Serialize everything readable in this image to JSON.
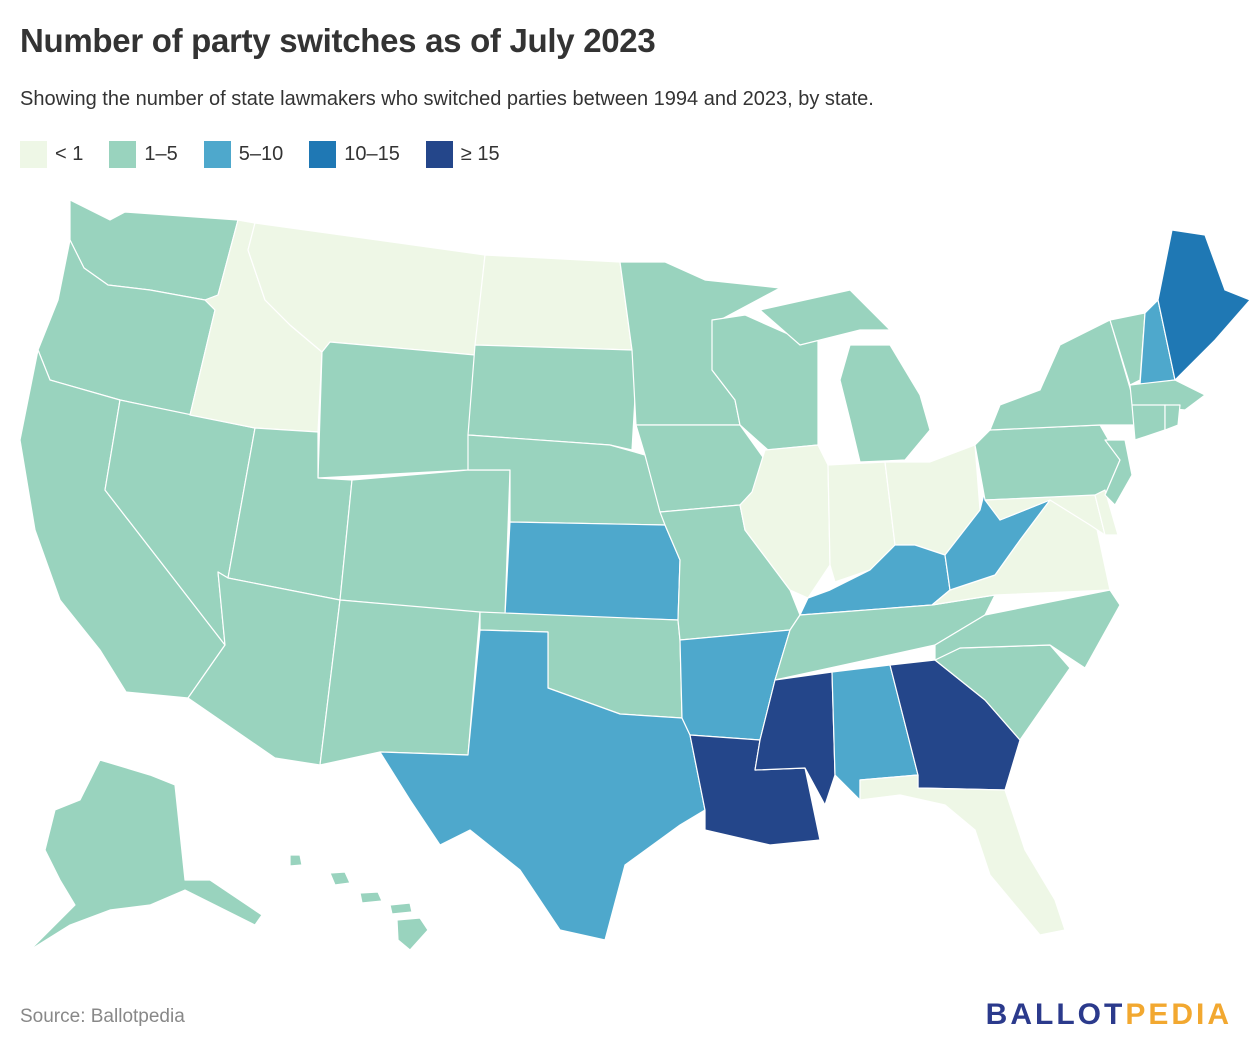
{
  "title": "Number of party switches as of July 2023",
  "subtitle": "Showing the number of state lawmakers who switched parties between 1994 and 2023, by state.",
  "legend": [
    {
      "label": "< 1",
      "color": "#eef7e6"
    },
    {
      "label": "1–5",
      "color": "#99d3be"
    },
    {
      "label": "5–10",
      "color": "#4ea8cc"
    },
    {
      "label": "10–15",
      "color": "#1f78b4"
    },
    {
      "label": "≥ 15",
      "color": "#24468a"
    }
  ],
  "states": {
    "WA": "1–5",
    "OR": "1–5",
    "CA": "1–5",
    "NV": "1–5",
    "ID": "< 1",
    "MT": "< 1",
    "WY": "1–5",
    "UT": "1–5",
    "AZ": "1–5",
    "CO": "1–5",
    "NM": "1–5",
    "ND": "< 1",
    "SD": "1–5",
    "NE": "1–5",
    "KS": "5–10",
    "OK": "1–5",
    "TX": "5–10",
    "MN": "1–5",
    "IA": "1–5",
    "MO": "1–5",
    "AR": "5–10",
    "LA": "≥ 15",
    "WI": "1–5",
    "IL": "< 1",
    "MI": "1–5",
    "IN": "< 1",
    "OH": "< 1",
    "KY": "5–10",
    "TN": "1–5",
    "MS": "≥ 15",
    "AL": "5–10",
    "GA": "≥ 15",
    "FL": "< 1",
    "SC": "1–5",
    "NC": "1–5",
    "VA": "< 1",
    "WV": "5–10",
    "PA": "1–5",
    "NY": "1–5",
    "VT": "1–5",
    "NH": "5–10",
    "ME": "10–15",
    "MA": "1–5",
    "CT": "1–5",
    "RI": "1–5",
    "NJ": "1–5",
    "DE": "< 1",
    "MD": "< 1",
    "AK": "1–5",
    "HI": "1–5"
  },
  "source": "Source: Ballotpedia",
  "brand": {
    "part1": "BALLOT",
    "part2": "PEDIA"
  }
}
